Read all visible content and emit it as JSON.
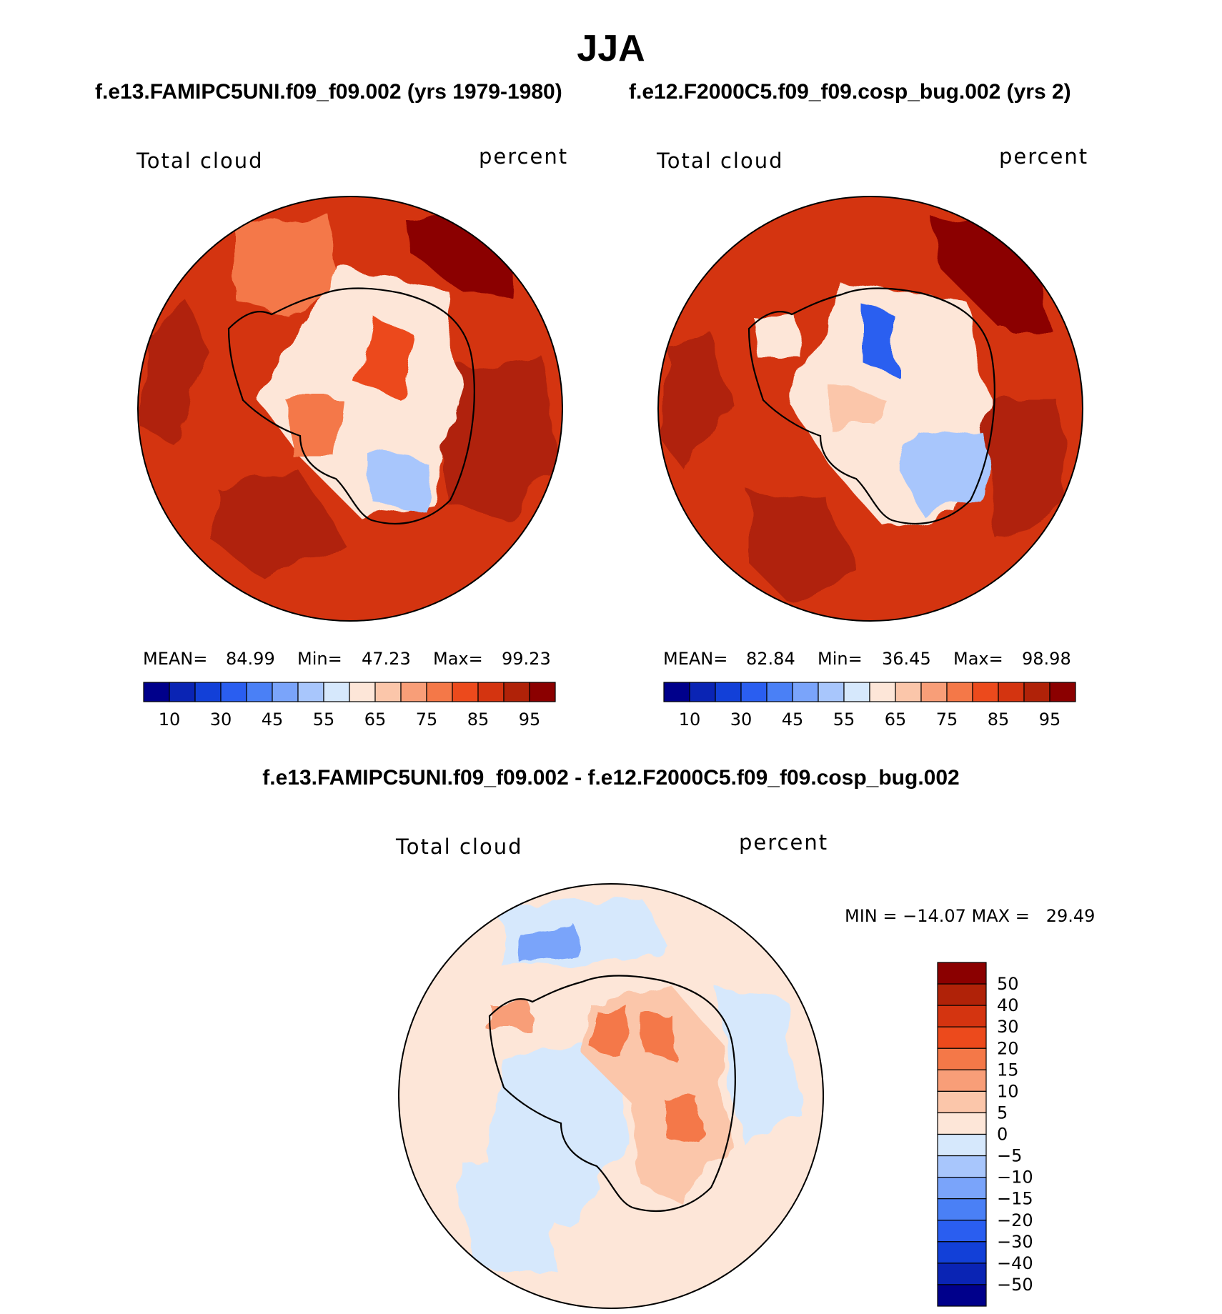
{
  "figure": {
    "season": "JJA",
    "top_left_case": "f.e13.FAMIPC5UNI.f09_f09.002 (yrs 1979-1980)",
    "top_right_case": "f.e12.F2000C5.f09_f09.cosp_bug.002 (yrs 2)",
    "diff_title": "f.e13.FAMIPC5UNI.f09_f09.002 - f.e12.F2000C5.f09_f09.cosp_bug.002"
  },
  "chart_data": [
    {
      "type": "heatmap",
      "projection": "south-polar-stereographic",
      "variable": "Total cloud",
      "units": "percent",
      "stats": {
        "mean_label": "MEAN=",
        "mean": "84.99",
        "min_label": "Min=",
        "min": "47.23",
        "max_label": "Max=",
        "max": "99.23"
      },
      "colorbar": {
        "orientation": "horizontal",
        "tick_labels": [
          "10",
          "30",
          "45",
          "55",
          "65",
          "75",
          "85",
          "95"
        ],
        "colors": [
          "#00008b",
          "#0a24b4",
          "#1240d8",
          "#2a5ef0",
          "#4a80f6",
          "#7aa4fa",
          "#a8c6fc",
          "#d6e8fc",
          "#fde6d8",
          "#fbc6aa",
          "#f89e78",
          "#f47848",
          "#ec4a1c",
          "#d43410",
          "#b02208",
          "#8b0000"
        ]
      }
    },
    {
      "type": "heatmap",
      "projection": "south-polar-stereographic",
      "variable": "Total cloud",
      "units": "percent",
      "stats": {
        "mean_label": "MEAN=",
        "mean": "82.84",
        "min_label": "Min=",
        "min": "36.45",
        "max_label": "Max=",
        "max": "98.98"
      },
      "colorbar": {
        "orientation": "horizontal",
        "tick_labels": [
          "10",
          "30",
          "45",
          "55",
          "65",
          "75",
          "85",
          "95"
        ],
        "colors": [
          "#00008b",
          "#0a24b4",
          "#1240d8",
          "#2a5ef0",
          "#4a80f6",
          "#7aa4fa",
          "#a8c6fc",
          "#d6e8fc",
          "#fde6d8",
          "#fbc6aa",
          "#f89e78",
          "#f47848",
          "#ec4a1c",
          "#d43410",
          "#b02208",
          "#8b0000"
        ]
      }
    },
    {
      "type": "heatmap",
      "projection": "south-polar-stereographic",
      "variable": "Total cloud",
      "units": "percent",
      "stats": {
        "text": "MIN = −14.07 MAX =   29.49"
      },
      "colorbar": {
        "orientation": "vertical",
        "tick_labels": [
          "50",
          "40",
          "30",
          "20",
          "15",
          "10",
          "5",
          "0",
          "−5",
          "−10",
          "−15",
          "−20",
          "−30",
          "−40",
          "−50"
        ],
        "colors": [
          "#8b0000",
          "#b02208",
          "#d43410",
          "#ec4a1c",
          "#f47848",
          "#f89e78",
          "#fbc6aa",
          "#fde6d8",
          "#d6e8fc",
          "#a8c6fc",
          "#7aa4fa",
          "#4a80f6",
          "#2a5ef0",
          "#1240d8",
          "#0a24b4",
          "#00008b"
        ]
      }
    }
  ]
}
